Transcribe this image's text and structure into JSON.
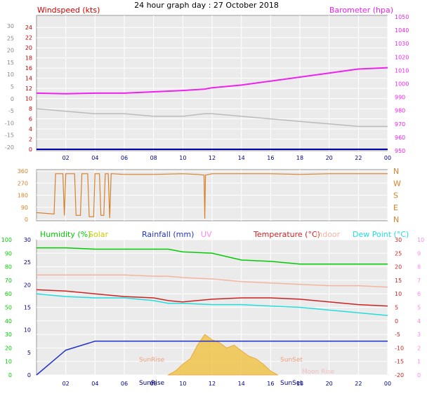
{
  "title": "24 hour graph day : 27 October 2018",
  "x_ticks": [
    "02",
    "04",
    "06",
    "08",
    "10",
    "12",
    "14",
    "16",
    "18",
    "20",
    "22",
    "00"
  ],
  "colors": {
    "windspeed": "#cc0000",
    "barometer": "#ee22ee",
    "wind_line": "#bbbbbb",
    "direction": "#d8802a",
    "humidity": "#00cc00",
    "solar": "#cccc00",
    "rainfall": "#2233cc",
    "uv": "#ff88ee",
    "temperature": "#cc2222",
    "indoor": "#f5b4a0",
    "dew_point": "#22dddd",
    "plot_bg": "#ebebeb"
  },
  "chart_data": [
    {
      "type": "line",
      "ylabel_left": "Windspeed (kts)",
      "ylabel_right": "Barometer (hpa)",
      "left_ticks_kts": [
        "24",
        "22",
        "20",
        "18",
        "16",
        "14",
        "12",
        "10",
        "8",
        "6",
        "4",
        "2",
        "0"
      ],
      "outer_ticks": [
        "30",
        "25",
        "20",
        "15",
        "10",
        "5",
        "0",
        "-5",
        "-10",
        "-15",
        "-20"
      ],
      "right_ticks_hpa": [
        "1050",
        "1040",
        "1030",
        "1020",
        "1010",
        "1000",
        "990",
        "980",
        "970",
        "960",
        "950"
      ],
      "ylim_kts": [
        0,
        25
      ],
      "ylim_hpa": [
        950,
        1050
      ],
      "x_hours": [
        0,
        2,
        4,
        6,
        8,
        10,
        11.5,
        12,
        14,
        16,
        18,
        20,
        22,
        24
      ],
      "wind_kts": [
        8.0,
        7.5,
        7.0,
        7.0,
        6.5,
        6.5,
        7.0,
        7.0,
        6.5,
        6.0,
        5.5,
        5.0,
        4.5,
        4.5
      ],
      "barometer_hpa": [
        993,
        992.5,
        993,
        993,
        994,
        995,
        996,
        997,
        999,
        1002,
        1005,
        1008,
        1011,
        1012
      ],
      "x_ticks": [
        "02",
        "04",
        "06",
        "08",
        "10",
        "12",
        "14",
        "16",
        "18",
        "20",
        "22",
        "00"
      ]
    },
    {
      "type": "line",
      "ylabel": "Direction",
      "y_ticks": [
        "360",
        "270",
        "180",
        "90",
        "0"
      ],
      "right_ticks": [
        "N",
        "W",
        "S",
        "E",
        "N"
      ],
      "ylim": [
        0,
        360
      ],
      "x_hours": [
        0,
        1.2,
        1.3,
        1.8,
        1.9,
        2.0,
        2.6,
        2.7,
        3.0,
        3.1,
        3.5,
        3.6,
        3.9,
        4.0,
        4.3,
        4.4,
        4.6,
        4.7,
        4.9,
        5.0,
        5.1,
        5.2,
        6.0,
        6.5,
        8,
        10,
        11,
        11.45,
        11.5,
        11.55,
        12,
        14,
        16,
        18,
        20,
        22,
        24
      ],
      "direction_deg": [
        50,
        40,
        340,
        340,
        30,
        340,
        340,
        30,
        30,
        340,
        340,
        20,
        20,
        340,
        340,
        30,
        30,
        340,
        340,
        10,
        340,
        340,
        335,
        335,
        335,
        340,
        335,
        330,
        5,
        330,
        340,
        340,
        340,
        335,
        340,
        340,
        340
      ]
    },
    {
      "type": "line",
      "legend": [
        "Humidity (%)",
        "Solar",
        "Rainfall (mm)",
        "UV",
        "Temperature (°C)",
        "Indoor",
        "Dew Point (°C)"
      ],
      "left_ticks_humidity": [
        "100",
        "90",
        "80",
        "70",
        "60",
        "50",
        "40",
        "30",
        "20",
        "10",
        "0"
      ],
      "inner_ticks": [
        "30",
        "25",
        "20",
        "15",
        "10",
        "5",
        "0"
      ],
      "right_ticks_temp": [
        "30",
        "25",
        "20",
        "15",
        "10",
        "5",
        "0",
        "-5",
        "-10",
        "-15",
        "-20"
      ],
      "right_ticks_uv": [
        "10",
        "9",
        "8",
        "7",
        "6",
        "5",
        "4",
        "3",
        "2",
        "1",
        "0"
      ],
      "ylim_temp": [
        -20,
        30
      ],
      "ylim_humidity": [
        0,
        100
      ],
      "x_hours": [
        0,
        2,
        4,
        6,
        8,
        9,
        10,
        12,
        14,
        16,
        18,
        20,
        22,
        24
      ],
      "temperature_c": [
        11.5,
        11,
        10,
        9,
        8.5,
        7.5,
        7,
        8,
        8.5,
        8.5,
        8,
        7,
        6,
        5.5
      ],
      "dew_point_c": [
        10,
        9,
        8.5,
        8.5,
        7.5,
        6.5,
        6.5,
        6,
        6,
        5.5,
        5,
        4,
        3,
        2
      ],
      "humidity_pct": [
        94,
        94,
        93,
        93,
        93,
        93,
        91,
        90,
        85,
        84,
        82,
        82,
        82,
        82
      ],
      "indoor_c": [
        17,
        17,
        17,
        17,
        16.5,
        16.5,
        16,
        15.5,
        14.5,
        14,
        13.5,
        13,
        13,
        12.5
      ],
      "rainfall_mm": [
        0,
        5.5,
        7.5,
        7.5,
        7.5,
        7.5,
        7.5,
        7.5,
        7.5,
        7.5,
        7.5,
        7.5,
        7.5,
        7.5
      ],
      "solar_x_hours": [
        9.0,
        9.5,
        10,
        10.5,
        11,
        11.5,
        12,
        12.5,
        13,
        13.5,
        14,
        14.5,
        15,
        15.5,
        16,
        16.5
      ],
      "solar_level": [
        0,
        0.3,
        0.8,
        1.2,
        2.2,
        3.0,
        2.6,
        2.4,
        2.0,
        2.2,
        1.8,
        1.4,
        1.2,
        0.8,
        0.3,
        0
      ],
      "annotations": [
        "SunRise",
        "SunSet",
        "Moon Rise",
        "SunRise",
        "SunSet"
      ]
    }
  ]
}
